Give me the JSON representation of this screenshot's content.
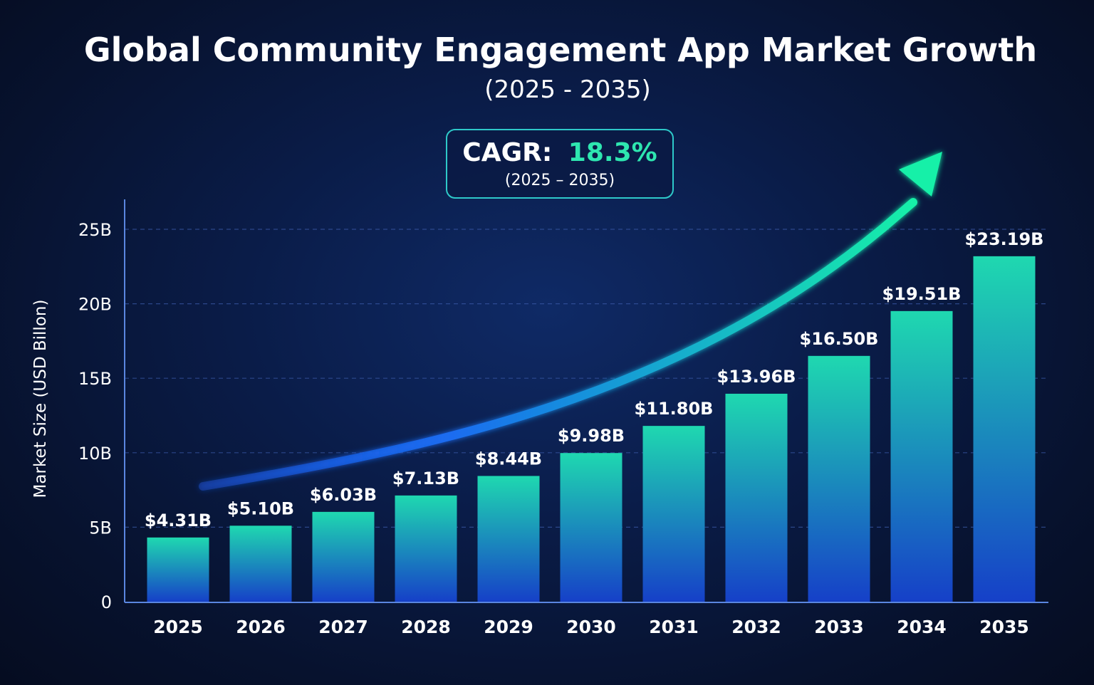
{
  "chart_data": {
    "type": "bar",
    "title": "Global Community Engagement App Market Growth",
    "subtitle": "(2025 - 2035)",
    "ylabel": "Market Size (USD Billon)",
    "xlabel": "",
    "categories": [
      "2025",
      "2026",
      "2027",
      "2028",
      "2029",
      "2030",
      "2031",
      "2032",
      "2033",
      "2034",
      "2035"
    ],
    "values": [
      4.31,
      5.1,
      6.03,
      7.13,
      8.44,
      9.98,
      11.8,
      13.96,
      16.5,
      19.51,
      23.19
    ],
    "value_labels": [
      "$4.31B",
      "$5.10B",
      "$6.03B",
      "$7.13B",
      "$8.44B",
      "$9.98B",
      "$11.80B",
      "$13.96B",
      "$16.50B",
      "$19.51B",
      "$23.19B"
    ],
    "yticks": [
      0,
      5,
      10,
      15,
      20,
      25
    ],
    "ytick_labels": [
      "0",
      "5B",
      "10B",
      "15B",
      "20B",
      "25B"
    ],
    "ylim": [
      0,
      25
    ],
    "grid": true,
    "legend": "none",
    "colors": {
      "bar_top": "#1fd8b0",
      "bar_bottom": "#1640c8",
      "accent": "#2ee6b0",
      "arrow_start": "#1a5cf0",
      "arrow_end": "#14f0a8",
      "gridline": "#3a5aa8",
      "axis": "#5a86e0"
    },
    "annotation": {
      "cagr_label": "CAGR:",
      "cagr_value": "18.3%",
      "cagr_period": "(2025 – 2035)"
    }
  }
}
